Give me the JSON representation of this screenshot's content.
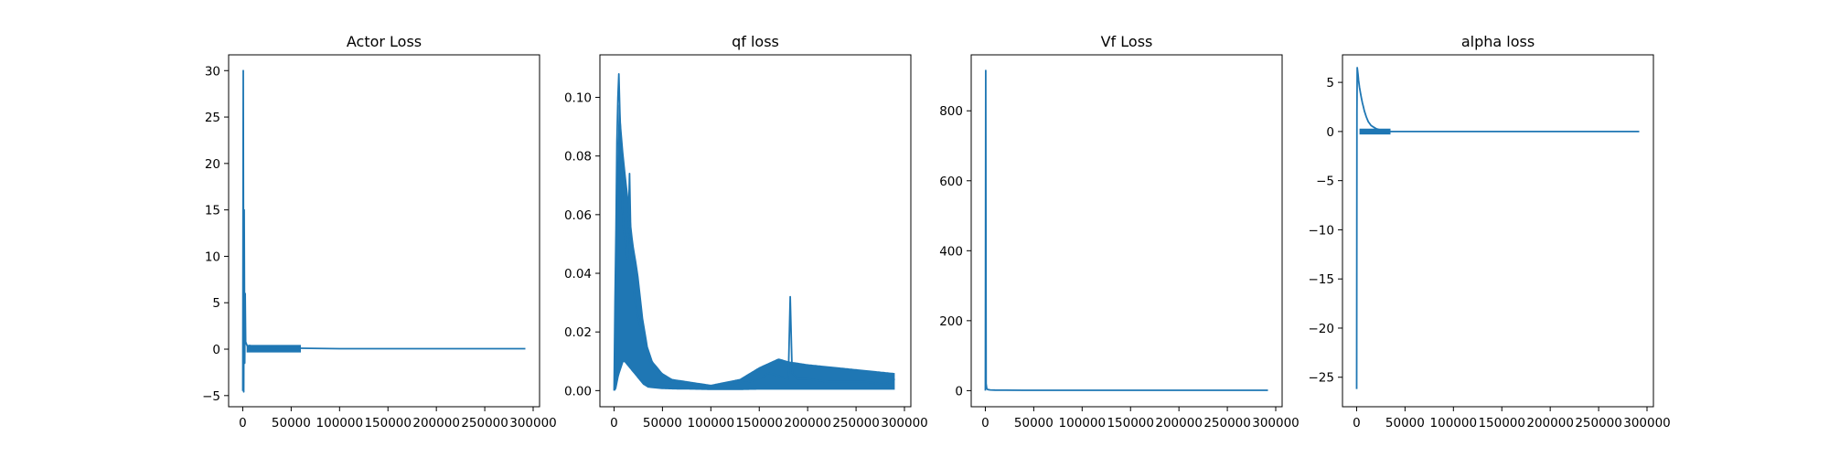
{
  "figure": {
    "background": "#ffffff",
    "line_color": "#1f77b4"
  },
  "chart_data": [
    {
      "type": "line",
      "title": "Actor Loss",
      "xlabel": "",
      "ylabel": "",
      "xlim": [
        -14600,
        306600
      ],
      "ylim": [
        -6.2,
        31.7
      ],
      "xticks": [
        0,
        50000,
        100000,
        150000,
        200000,
        250000,
        300000
      ],
      "xtick_labels": [
        "0",
        "50000",
        "100000",
        "150000",
        "200000",
        "250000",
        "300000"
      ],
      "yticks": [
        -5,
        0,
        5,
        10,
        15,
        20,
        25,
        30
      ],
      "ytick_labels": [
        "−5",
        "0",
        "5",
        "10",
        "15",
        "20",
        "25",
        "30"
      ],
      "grid": false,
      "series": [
        {
          "color": "#1f77b4",
          "x": [
            0,
            500,
            1000,
            1500,
            2000,
            2500,
            3000,
            4000,
            5000,
            7000,
            10000,
            15000,
            20000,
            25000,
            30000,
            40000,
            60000,
            100000,
            150000,
            200000,
            250000,
            292000
          ],
          "y": [
            -4.5,
            30,
            -4.6,
            15,
            -1.5,
            6,
            0.8,
            0.5,
            0.3,
            0.4,
            0.3,
            0.35,
            0.3,
            0.25,
            0.2,
            0.15,
            0.1,
            0.05,
            0.05,
            0.05,
            0.05,
            0.05
          ],
          "band": {
            "x": [
              4000,
              60000
            ],
            "low": -0.35,
            "high": 0.45
          }
        }
      ]
    },
    {
      "type": "line",
      "title": "qf loss",
      "xlabel": "",
      "ylabel": "",
      "xlim": [
        -14600,
        306600
      ],
      "ylim": [
        -0.0055,
        0.1145
      ],
      "xticks": [
        0,
        50000,
        100000,
        150000,
        200000,
        250000,
        300000
      ],
      "xtick_labels": [
        "0",
        "50000",
        "100000",
        "150000",
        "200000",
        "250000",
        "300000"
      ],
      "yticks": [
        0.0,
        0.02,
        0.04,
        0.06,
        0.08,
        0.1
      ],
      "ytick_labels": [
        "0.00",
        "0.02",
        "0.04",
        "0.06",
        "0.08",
        "0.10"
      ],
      "grid": false,
      "series": [
        {
          "color": "#1f77b4",
          "x": [
            0,
            1000,
            2000,
            3000,
            4000,
            5000,
            6000,
            7000,
            8000,
            9000,
            10000,
            12000,
            14000,
            16000,
            18000,
            20000,
            22000,
            25000,
            30000,
            35000,
            40000,
            50000,
            60000,
            80000,
            100000,
            120000,
            140000,
            150000,
            160000,
            170000,
            180000,
            182000,
            184000,
            190000,
            200000,
            220000,
            240000,
            260000,
            280000,
            290000
          ],
          "y": [
            0.0,
            0.03,
            0.055,
            0.085,
            0.1,
            0.108,
            0.095,
            0.085,
            0.07,
            0.06,
            0.055,
            0.05,
            0.045,
            0.074,
            0.04,
            0.035,
            0.03,
            0.025,
            0.018,
            0.012,
            0.008,
            0.005,
            0.003,
            0.002,
            0.0015,
            0.002,
            0.003,
            0.004,
            0.006,
            0.005,
            0.004,
            0.032,
            0.006,
            0.004,
            0.004,
            0.003,
            0.003,
            0.003,
            0.002,
            0.004
          ],
          "band": {
            "x": [
              0,
              2000,
              5000,
              10000,
              15000,
              20000,
              25000,
              30000,
              35000,
              40000,
              50000,
              60000,
              80000,
              100000,
              130000,
              150000,
              170000,
              180000,
              200000,
              230000,
              260000,
              290000
            ],
            "low": [
              0.0,
              0.0,
              0.005,
              0.01,
              0.008,
              0.006,
              0.004,
              0.002,
              0.001,
              0.0008,
              0.0005,
              0.0004,
              0.0003,
              0.0002,
              0.0002,
              0.0003,
              0.0003,
              0.0003,
              0.0003,
              0.0003,
              0.0003,
              0.0003
            ],
            "high": [
              0.001,
              0.06,
              0.1,
              0.08,
              0.065,
              0.05,
              0.04,
              0.025,
              0.015,
              0.01,
              0.006,
              0.004,
              0.003,
              0.002,
              0.004,
              0.008,
              0.011,
              0.01,
              0.009,
              0.008,
              0.007,
              0.006
            ]
          }
        }
      ]
    },
    {
      "type": "line",
      "title": "Vf Loss",
      "xlabel": "",
      "ylabel": "",
      "xlim": [
        -14600,
        306600
      ],
      "ylim": [
        -46,
        960
      ],
      "xticks": [
        0,
        50000,
        100000,
        150000,
        200000,
        250000,
        300000
      ],
      "xtick_labels": [
        "0",
        "50000",
        "100000",
        "150000",
        "200000",
        "250000",
        "300000"
      ],
      "yticks": [
        0,
        200,
        400,
        600,
        800
      ],
      "ytick_labels": [
        "0",
        "200",
        "400",
        "600",
        "800"
      ],
      "grid": false,
      "series": [
        {
          "color": "#1f77b4",
          "x": [
            0,
            400,
            800,
            1500,
            2500,
            5000,
            10000,
            20000,
            40000,
            100000,
            150000,
            200000,
            250000,
            292000
          ],
          "y": [
            0,
            915,
            20,
            6,
            3,
            2,
            1.5,
            1.2,
            1,
            1,
            1,
            1,
            1,
            1
          ]
        }
      ]
    },
    {
      "type": "line",
      "title": "alpha loss",
      "xlabel": "",
      "ylabel": "",
      "xlim": [
        -14600,
        306600
      ],
      "ylim": [
        -28.0,
        7.8
      ],
      "xticks": [
        0,
        50000,
        100000,
        150000,
        200000,
        250000,
        300000
      ],
      "xtick_labels": [
        "0",
        "50000",
        "100000",
        "150000",
        "200000",
        "250000",
        "300000"
      ],
      "yticks": [
        -25,
        -20,
        -15,
        -10,
        -5,
        0,
        5
      ],
      "ytick_labels": [
        "−25",
        "−20",
        "−15",
        "−10",
        "−5",
        "0",
        "5"
      ],
      "grid": false,
      "series": [
        {
          "color": "#1f77b4",
          "x": [
            0,
            300,
            600,
            1000,
            1500,
            2000,
            3000,
            4000,
            5000,
            6000,
            7000,
            8000,
            10000,
            12000,
            15000,
            20000,
            25000,
            30000,
            35000,
            40000,
            60000,
            100000,
            150000,
            200000,
            250000,
            292000
          ],
          "y": [
            -26.2,
            2.0,
            6.5,
            6.2,
            5.8,
            5.2,
            4.5,
            3.9,
            3.4,
            2.9,
            2.5,
            2.1,
            1.5,
            1.0,
            0.6,
            0.3,
            0.15,
            0.05,
            0.0,
            0.0,
            0.0,
            0.0,
            0.0,
            0.0,
            0.0,
            0.0
          ],
          "band": {
            "x": [
              3000,
              35000
            ],
            "low": -0.3,
            "high": 0.3
          }
        }
      ]
    }
  ]
}
